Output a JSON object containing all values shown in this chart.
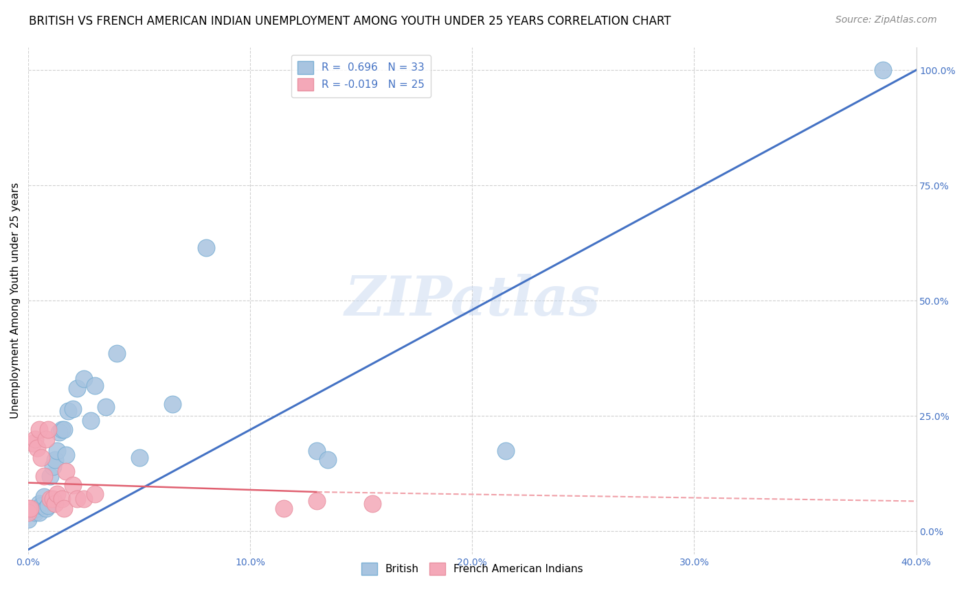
{
  "title": "BRITISH VS FRENCH AMERICAN INDIAN UNEMPLOYMENT AMONG YOUTH UNDER 25 YEARS CORRELATION CHART",
  "source": "Source: ZipAtlas.com",
  "ylabel": "Unemployment Among Youth under 25 years",
  "xlim": [
    0.0,
    0.4
  ],
  "ylim": [
    -0.05,
    1.05
  ],
  "xtick_labels": [
    "0.0%",
    "10.0%",
    "20.0%",
    "30.0%",
    "40.0%"
  ],
  "xtick_values": [
    0.0,
    0.1,
    0.2,
    0.3,
    0.4
  ],
  "ytick_labels_right": [
    "100.0%",
    "75.0%",
    "50.0%",
    "25.0%",
    "0.0%"
  ],
  "ytick_values": [
    1.0,
    0.75,
    0.5,
    0.25,
    0.0
  ],
  "legend_british_R": "0.696",
  "legend_british_N": "33",
  "legend_french_R": "-0.019",
  "legend_french_N": "25",
  "british_color": "#a8c4e0",
  "french_color": "#f4a8b8",
  "british_line_color": "#4472c4",
  "french_line_solid_color": "#e06070",
  "french_line_dash_color": "#f0a0a8",
  "watermark_text": "ZIPatlas",
  "background_color": "#ffffff",
  "grid_color": "#d0d0d0",
  "british_scatter_x": [
    0.0,
    0.002,
    0.003,
    0.004,
    0.005,
    0.005,
    0.006,
    0.007,
    0.008,
    0.009,
    0.01,
    0.011,
    0.012,
    0.013,
    0.014,
    0.015,
    0.016,
    0.017,
    0.018,
    0.02,
    0.022,
    0.025,
    0.028,
    0.03,
    0.035,
    0.04,
    0.05,
    0.065,
    0.08,
    0.13,
    0.135,
    0.215,
    0.385
  ],
  "british_scatter_y": [
    0.025,
    0.045,
    0.04,
    0.05,
    0.04,
    0.06,
    0.055,
    0.075,
    0.05,
    0.055,
    0.12,
    0.14,
    0.155,
    0.175,
    0.215,
    0.22,
    0.22,
    0.165,
    0.26,
    0.265,
    0.31,
    0.33,
    0.24,
    0.315,
    0.27,
    0.385,
    0.16,
    0.275,
    0.615,
    0.175,
    0.155,
    0.175,
    1.0
  ],
  "french_scatter_x": [
    0.0,
    0.0,
    0.001,
    0.002,
    0.003,
    0.004,
    0.005,
    0.006,
    0.007,
    0.008,
    0.009,
    0.01,
    0.011,
    0.012,
    0.013,
    0.015,
    0.016,
    0.017,
    0.02,
    0.022,
    0.025,
    0.03,
    0.115,
    0.13,
    0.155
  ],
  "french_scatter_y": [
    0.05,
    0.04,
    0.05,
    0.19,
    0.2,
    0.18,
    0.22,
    0.16,
    0.12,
    0.2,
    0.22,
    0.07,
    0.07,
    0.06,
    0.08,
    0.07,
    0.05,
    0.13,
    0.1,
    0.07,
    0.07,
    0.08,
    0.05,
    0.065,
    0.06
  ],
  "british_line_x0": 0.0,
  "british_line_y0": -0.04,
  "british_line_x1": 0.4,
  "british_line_y1": 1.0,
  "french_line_solid_x0": 0.0,
  "french_line_solid_y0": 0.105,
  "french_line_solid_x1": 0.13,
  "french_line_solid_y1": 0.085,
  "french_line_dash_x0": 0.13,
  "french_line_dash_y0": 0.085,
  "french_line_dash_x1": 0.4,
  "french_line_dash_y1": 0.065,
  "title_fontsize": 12,
  "axis_label_fontsize": 11,
  "tick_fontsize": 10,
  "legend_fontsize": 11,
  "source_fontsize": 10
}
